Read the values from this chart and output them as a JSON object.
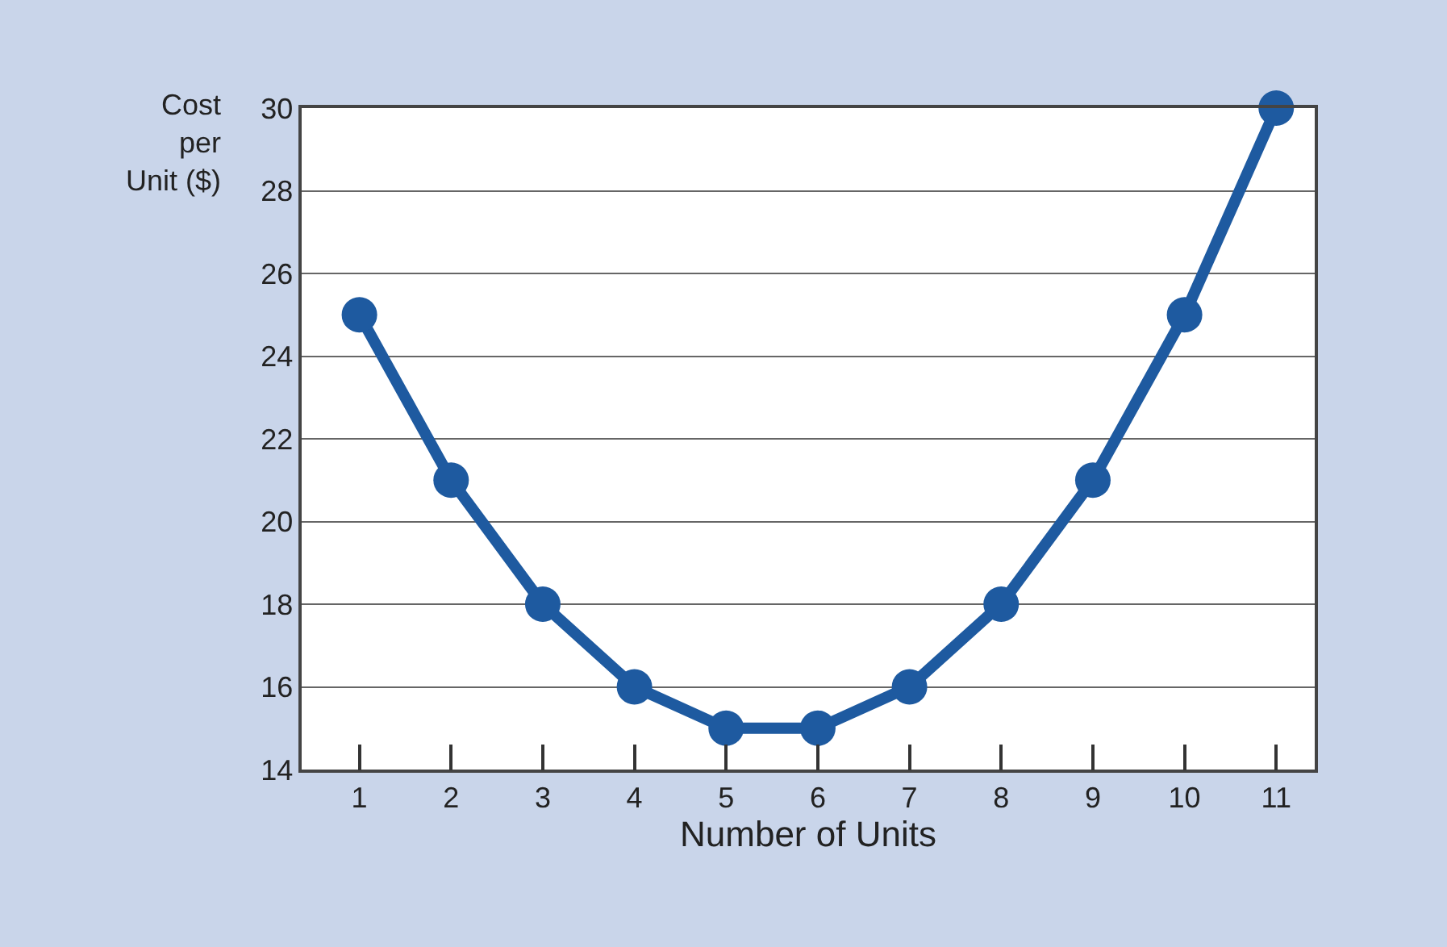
{
  "chart_data": {
    "type": "line",
    "xlabel": "Number of Units",
    "ylabel": "Cost per Unit ($)",
    "x": [
      1,
      2,
      3,
      4,
      5,
      6,
      7,
      8,
      9,
      10,
      11
    ],
    "series": [
      {
        "color": "#1e5aa0",
        "values": [
          25,
          21,
          18,
          16,
          15,
          15,
          16,
          18,
          21,
          25,
          30
        ]
      }
    ],
    "xlim": [
      0.37,
      11.42
    ],
    "xticks": [
      1,
      2,
      3,
      4,
      5,
      6,
      7,
      8,
      9,
      10,
      11
    ],
    "ylim": [
      14,
      30
    ],
    "yticks": [
      14,
      16,
      18,
      20,
      22,
      24,
      26,
      28,
      30
    ],
    "grid": "y",
    "marker": "circle",
    "line_style": "solid"
  }
}
